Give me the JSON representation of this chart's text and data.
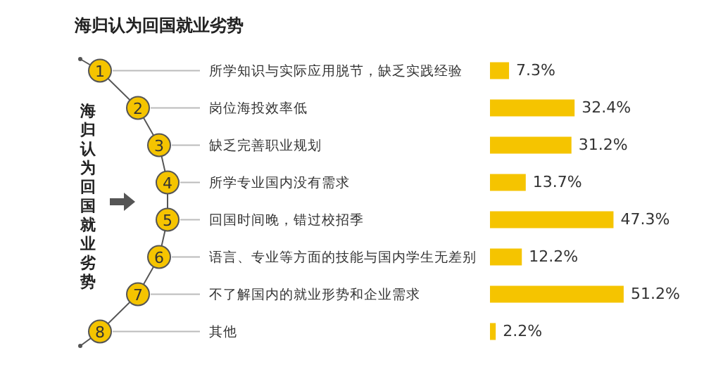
{
  "chart_data": {
    "type": "bar",
    "orientation": "horizontal",
    "title": "海归认为回国就业劣势",
    "ylabel": "海归认为回国就业劣势",
    "categories": [
      "所学知识与实际应用脱节，缺乏实践经验",
      "岗位海投效率低",
      "缺乏完善职业规划",
      "所学专业国内没有需求",
      "回国时间晚，错过校招季",
      "语言、专业等方面的技能与国内学生无差别",
      "不了解国内的就业形势和企业需求",
      "其他"
    ],
    "values": [
      7.3,
      32.4,
      31.2,
      13.7,
      47.3,
      12.2,
      51.2,
      2.2
    ],
    "value_labels": [
      "7.3%",
      "32.4%",
      "31.2%",
      "13.7%",
      "47.3%",
      "12.2%",
      "51.2%",
      "2.2%"
    ],
    "color": "#f5c400",
    "annotations": [
      "1",
      "2",
      "3",
      "4",
      "5",
      "6",
      "7",
      "8"
    ]
  }
}
